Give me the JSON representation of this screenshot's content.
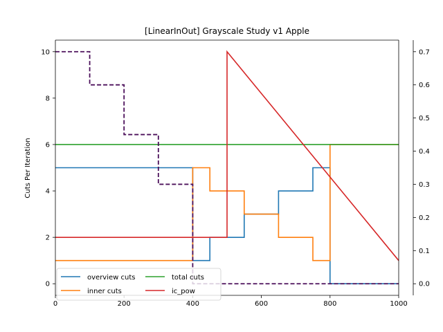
{
  "chart_data": {
    "type": "line",
    "title": "[LinearInOut] Grayscale Study v1 Apple",
    "xlabel": "",
    "ylabel": "Cuts Per Iteration",
    "xlim": [
      0,
      1000
    ],
    "ylim": [
      -0.5,
      10.5
    ],
    "y2lim": [
      -0.035,
      0.735
    ],
    "xticks": [
      0,
      200,
      400,
      600,
      800,
      1000
    ],
    "yticks": [
      0,
      2,
      4,
      6,
      8,
      10
    ],
    "y2ticks": [
      0.0,
      0.1,
      0.2,
      0.3,
      0.4,
      0.5,
      0.6,
      0.7
    ],
    "grid": false,
    "legend_placement": "lower-left",
    "series": [
      {
        "name": "overview cuts",
        "color": "#1f77b4",
        "axis": "left",
        "step": true,
        "x": [
          0,
          400,
          450,
          550,
          650,
          750,
          800,
          1000
        ],
        "y": [
          5,
          1,
          2,
          3,
          4,
          5,
          0,
          0
        ]
      },
      {
        "name": "inner cuts",
        "color": "#ff7f0e",
        "axis": "left",
        "step": true,
        "x": [
          0,
          400,
          450,
          550,
          650,
          750,
          800,
          1000
        ],
        "y": [
          1,
          5,
          4,
          3,
          2,
          1,
          6,
          6
        ]
      },
      {
        "name": "total cuts",
        "color": "#2ca02c",
        "axis": "left",
        "step": false,
        "x": [
          0,
          1000
        ],
        "y": [
          6,
          6
        ]
      },
      {
        "name": "ic_pow",
        "color": "#d62728",
        "axis": "left",
        "step": false,
        "x": [
          0,
          500,
          500,
          1000
        ],
        "y": [
          2,
          2,
          10,
          1
        ]
      },
      {
        "name": "",
        "color": "#4b0f5a",
        "axis": "right",
        "step": true,
        "dashed": true,
        "x": [
          0,
          100,
          200,
          300,
          400,
          1000
        ],
        "y": [
          0.7,
          0.6,
          0.45,
          0.3,
          0.0,
          0.0
        ]
      }
    ]
  }
}
